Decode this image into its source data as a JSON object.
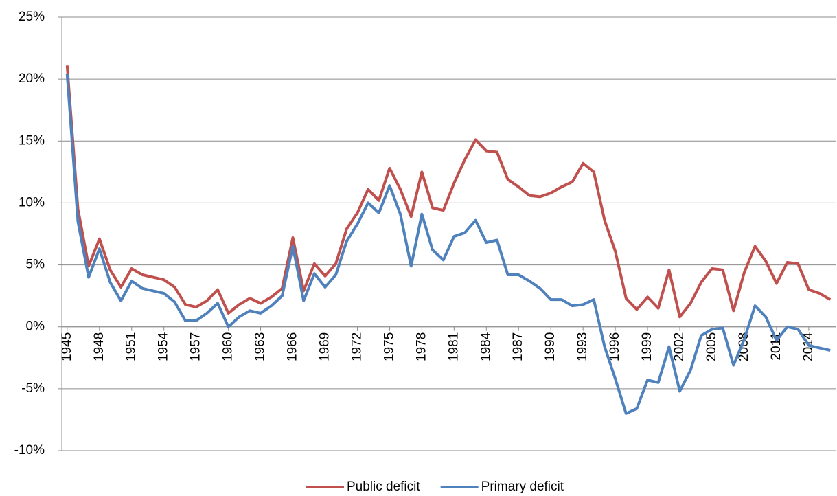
{
  "chart_data": {
    "type": "line",
    "x": [
      1945,
      1946,
      1947,
      1948,
      1949,
      1950,
      1951,
      1952,
      1953,
      1954,
      1955,
      1956,
      1957,
      1958,
      1959,
      1960,
      1961,
      1962,
      1963,
      1964,
      1965,
      1966,
      1967,
      1968,
      1969,
      1970,
      1971,
      1972,
      1973,
      1974,
      1975,
      1976,
      1977,
      1978,
      1979,
      1980,
      1981,
      1982,
      1983,
      1984,
      1985,
      1986,
      1987,
      1988,
      1989,
      1990,
      1991,
      1992,
      1993,
      1994,
      1995,
      1996,
      1997,
      1998,
      1999,
      2000,
      2001,
      2002,
      2003,
      2004,
      2005,
      2006,
      2007,
      2008,
      2009,
      2010,
      2011,
      2012,
      2013,
      2014,
      2015,
      2016
    ],
    "xlim": [
      1944.5,
      2016.5
    ],
    "xticks": [
      1945,
      1948,
      1951,
      1954,
      1957,
      1960,
      1963,
      1966,
      1969,
      1972,
      1975,
      1978,
      1981,
      1984,
      1987,
      1990,
      1993,
      1996,
      1999,
      2002,
      2005,
      2008,
      2011,
      2014
    ],
    "ylim": [
      -10,
      25
    ],
    "yticks": [
      {
        "value": -10,
        "label": "-10%"
      },
      {
        "value": -5,
        "label": "-5%"
      },
      {
        "value": 0,
        "label": "0%"
      },
      {
        "value": 5,
        "label": "5%"
      },
      {
        "value": 10,
        "label": "10%"
      },
      {
        "value": 15,
        "label": "15%"
      },
      {
        "value": 20,
        "label": "20%"
      },
      {
        "value": 25,
        "label": "25%"
      }
    ],
    "grid": true,
    "legend": "bottom",
    "series": [
      {
        "name": "Public deficit",
        "color": "#c0504d",
        "values": [
          21.1,
          9.5,
          4.9,
          7.1,
          4.6,
          3.2,
          4.7,
          4.2,
          4.0,
          3.8,
          3.2,
          1.8,
          1.6,
          2.1,
          3.0,
          1.1,
          1.8,
          2.3,
          1.9,
          2.4,
          3.1,
          7.2,
          2.9,
          5.1,
          4.1,
          5.1,
          7.9,
          9.2,
          11.1,
          10.2,
          12.8,
          11.1,
          8.9,
          12.5,
          9.6,
          9.4,
          11.6,
          13.5,
          15.1,
          14.2,
          14.1,
          11.9,
          11.3,
          10.6,
          10.5,
          10.8,
          11.3,
          11.7,
          13.2,
          12.5,
          8.6,
          6.1,
          2.3,
          1.4,
          2.4,
          1.5,
          4.6,
          0.8,
          1.9,
          3.6,
          4.7,
          4.6,
          1.3,
          4.4,
          6.5,
          5.3,
          3.5,
          5.2,
          5.1,
          3.0,
          2.7,
          2.2
        ]
      },
      {
        "name": "Primary deficit",
        "color": "#4f81bd",
        "values": [
          20.4,
          8.5,
          4.0,
          6.3,
          3.6,
          2.1,
          3.7,
          3.1,
          2.9,
          2.7,
          2.0,
          0.5,
          0.5,
          1.1,
          1.9,
          0.0,
          0.8,
          1.3,
          1.1,
          1.7,
          2.5,
          6.5,
          2.1,
          4.3,
          3.2,
          4.2,
          6.9,
          8.3,
          10.0,
          9.2,
          11.4,
          9.1,
          4.9,
          9.1,
          6.2,
          5.4,
          7.3,
          7.6,
          8.6,
          6.8,
          7.0,
          4.2,
          4.2,
          3.7,
          3.1,
          2.2,
          2.2,
          1.7,
          1.8,
          2.2,
          -1.6,
          -4.2,
          -7.0,
          -6.6,
          -4.3,
          -4.5,
          -1.6,
          -5.2,
          -3.5,
          -0.7,
          -0.2,
          -0.1,
          -3.1,
          -1.0,
          1.7,
          0.8,
          -1.1,
          0.0,
          -0.2,
          -1.5,
          -1.7,
          -1.9
        ]
      }
    ]
  }
}
